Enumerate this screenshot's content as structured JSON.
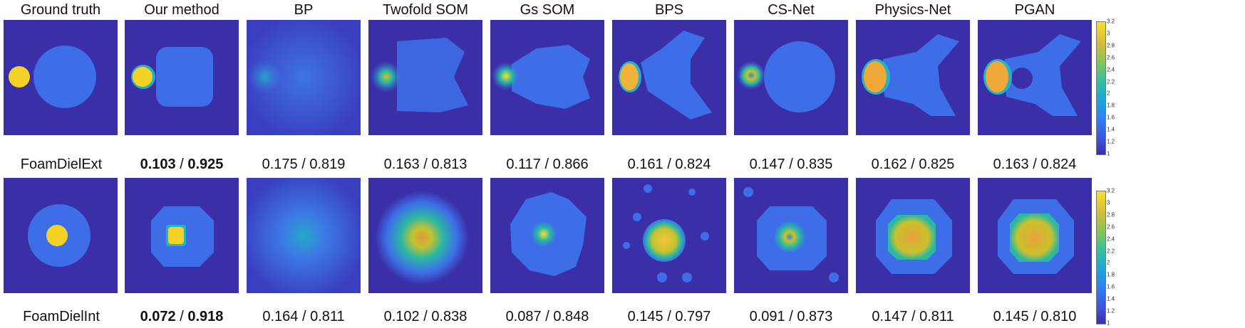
{
  "columns": [
    "Ground truth",
    "Our method",
    "BP",
    "Twofold SOM",
    "Gs SOM",
    "BPS",
    "CS-Net",
    "Physics-Net",
    "PGAN"
  ],
  "rows": [
    {
      "label": "FoamDielExt",
      "metrics": [
        {
          "a": "0.103",
          "b": "0.925",
          "bold": true
        },
        {
          "a": "0.175",
          "b": "0.819"
        },
        {
          "a": "0.163",
          "b": "0.813"
        },
        {
          "a": "0.117",
          "b": "0.866"
        },
        {
          "a": "0.161",
          "b": "0.824"
        },
        {
          "a": "0.147",
          "b": "0.835"
        },
        {
          "a": "0.162",
          "b": "0.825"
        },
        {
          "a": "0.163",
          "b": "0.824"
        }
      ]
    },
    {
      "label": "FoamDielInt",
      "metrics": [
        {
          "a": "0.072",
          "b": "0.918",
          "bold": true
        },
        {
          "a": "0.164",
          "b": "0.811"
        },
        {
          "a": "0.102",
          "b": "0.838"
        },
        {
          "a": "0.087",
          "b": "0.848"
        },
        {
          "a": "0.145",
          "b": "0.797"
        },
        {
          "a": "0.091",
          "b": "0.873"
        },
        {
          "a": "0.147",
          "b": "0.811"
        },
        {
          "a": "0.145",
          "b": "0.810"
        }
      ]
    }
  ],
  "separator": " / ",
  "colorbar_ticks": [
    "3.2",
    "3",
    "2.8",
    "2.6",
    "2.4",
    "2.2",
    "2",
    "1.8",
    "1.6",
    "1.4",
    "1.2",
    "1"
  ],
  "colors": {
    "background": "#3a2fa6",
    "mid": "#3d6ee8",
    "high": "#f4d226"
  }
}
